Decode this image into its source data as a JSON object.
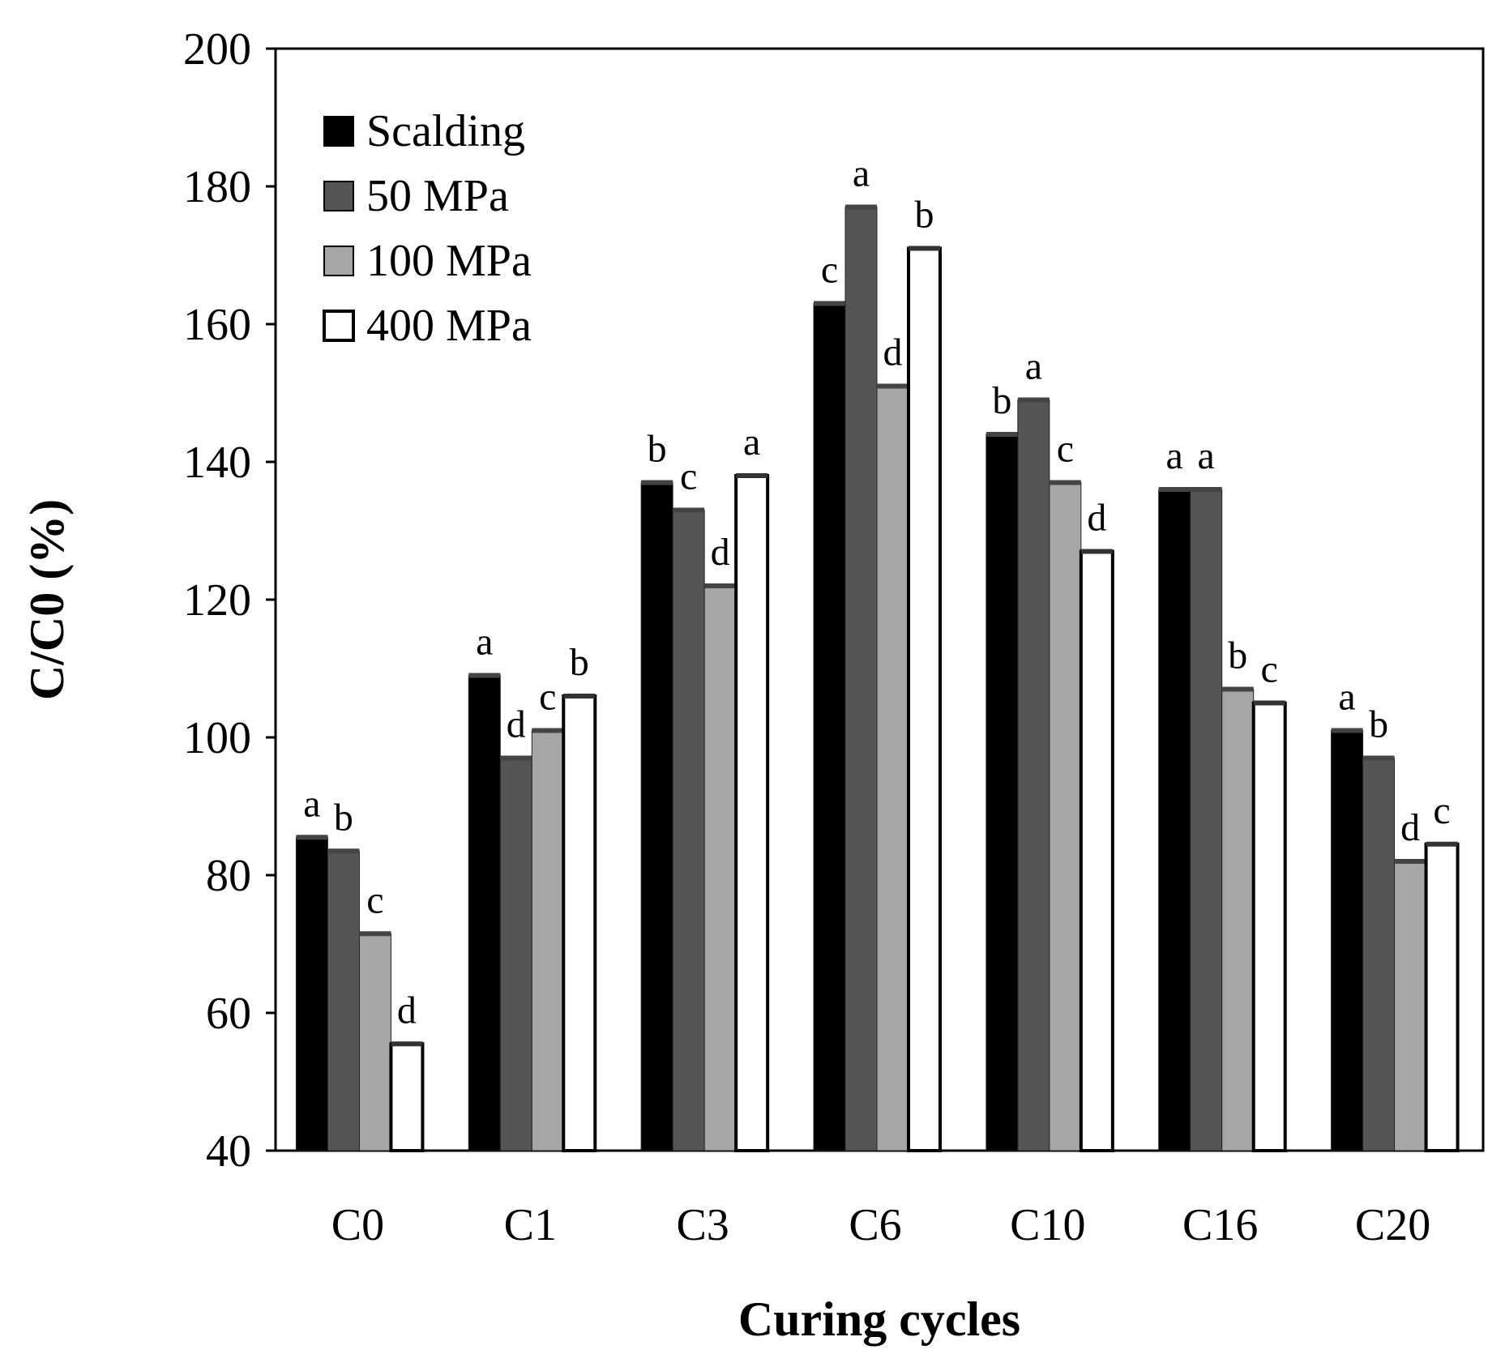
{
  "chart_data": {
    "type": "bar",
    "title": "",
    "xlabel": "Curing cycles",
    "ylabel": "C/C0 (%)",
    "ylim": [
      40,
      200
    ],
    "yticks": [
      40,
      60,
      80,
      100,
      120,
      140,
      160,
      180,
      200
    ],
    "ytick_labels": [
      "40",
      "60",
      "80",
      "100",
      "120",
      "140",
      "160",
      "180",
      "200"
    ],
    "grid": false,
    "legend_position": "top-left",
    "categories": [
      "C0",
      "C1",
      "C3",
      "C6",
      "C10",
      "C16",
      "C20"
    ],
    "series": [
      {
        "name": "Scalding",
        "color": "#000000",
        "values": [
          85.5,
          109,
          137,
          163,
          144,
          136,
          101
        ],
        "labels": [
          "a",
          "a",
          "b",
          "c",
          "b",
          "a",
          "a"
        ]
      },
      {
        "name": "50 MPa",
        "color": "#555555",
        "values": [
          83.5,
          97,
          133,
          177,
          149,
          136,
          97
        ],
        "labels": [
          "b",
          "d",
          "c",
          "a",
          "a",
          "a",
          "b"
        ]
      },
      {
        "name": "100 MPa",
        "color": "#a6a6a6",
        "values": [
          71.5,
          101,
          122,
          151,
          137,
          107,
          82
        ],
        "labels": [
          "c",
          "c",
          "d",
          "d",
          "c",
          "b",
          "d"
        ]
      },
      {
        "name": "400 MPa",
        "color": "#ffffff",
        "values": [
          55.5,
          106,
          138,
          171,
          127,
          105,
          84.5
        ],
        "labels": [
          "d",
          "b",
          "a",
          "b",
          "d",
          "c",
          "c"
        ]
      }
    ]
  }
}
